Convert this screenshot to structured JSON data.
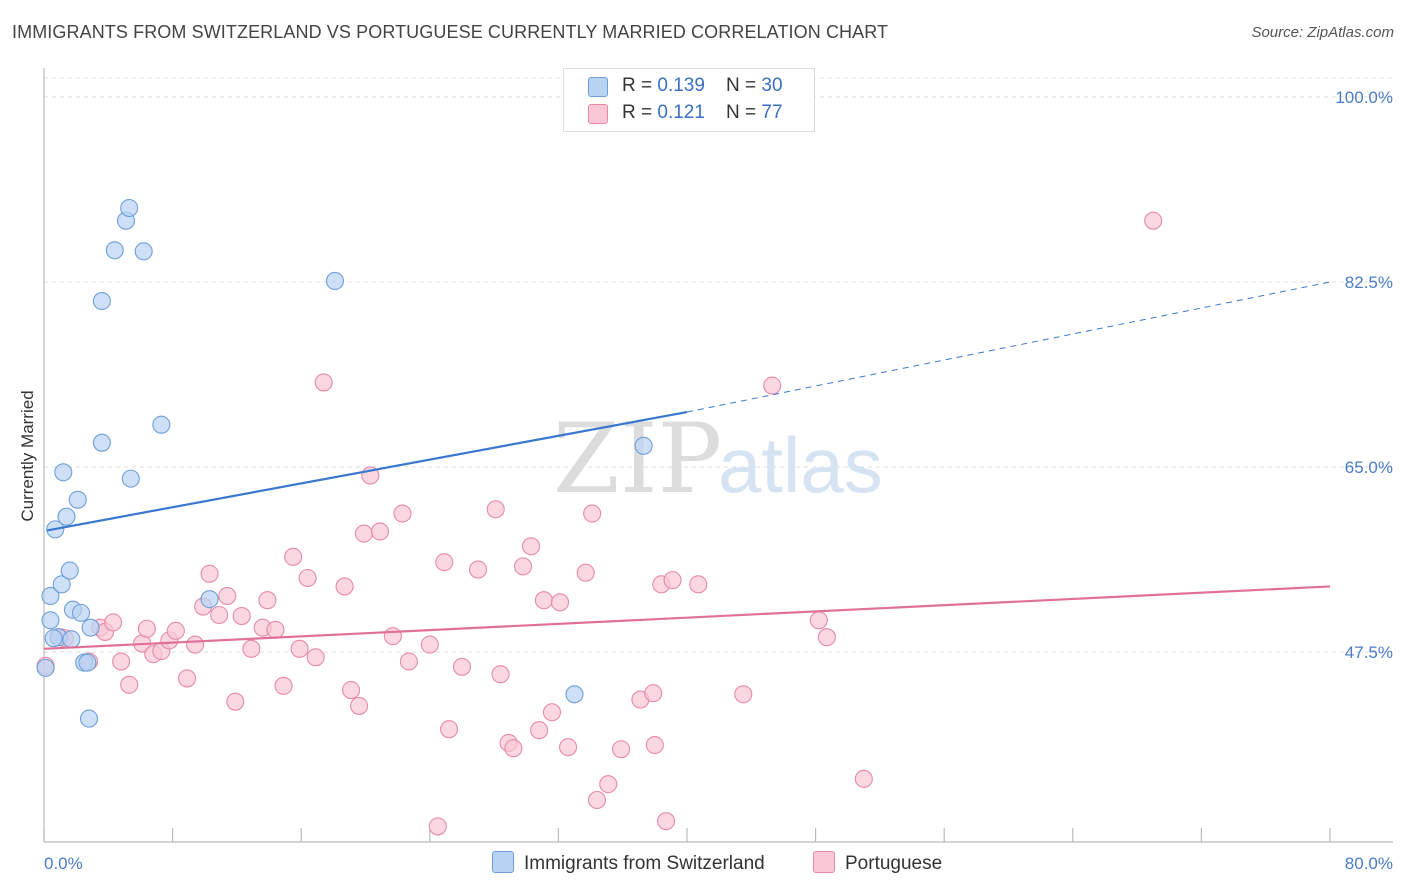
{
  "header": {
    "title": "IMMIGRANTS FROM SWITZERLAND VS PORTUGUESE CURRENTLY MARRIED CORRELATION CHART",
    "source": "Source: ZipAtlas.com"
  },
  "watermark": {
    "zip": "ZIP",
    "atlas": "atlas"
  },
  "legend": {
    "rows": [
      {
        "r_label": "R = ",
        "r_value": "0.139",
        "n_label": "N = ",
        "n_value": "30"
      },
      {
        "r_label": "R = ",
        "r_value": " 0.121",
        "n_label": "N = ",
        "n_value": "77"
      }
    ]
  },
  "colors": {
    "blue_fill": "#b8d3f3",
    "blue_stroke": "#6f9fd8",
    "blue_line": "#3a78d0",
    "pink_fill": "#f9c6d5",
    "pink_stroke": "#e68aa8",
    "pink_line": "#e0709a",
    "grid": "#dddddd",
    "axis_text": "#4a7cc7"
  },
  "chart_data": {
    "type": "scatter",
    "xlabel": "",
    "ylabel": "Currently Married",
    "xlim": [
      0,
      80
    ],
    "ylim": [
      31,
      104
    ],
    "x_tick_labels": [
      "0.0%",
      "80.0%"
    ],
    "y_ticks": [
      {
        "value": 100.0,
        "label": "100.0%"
      },
      {
        "value": 82.5,
        "label": "82.5%"
      },
      {
        "value": 65.0,
        "label": "65.0%"
      },
      {
        "value": 47.5,
        "label": "47.5%"
      }
    ],
    "grid": true,
    "legend_position": "bottom",
    "series": [
      {
        "name": "Immigrants from Switzerland",
        "color": "blue",
        "trend": {
          "x0": 0.2,
          "y0": 59.0,
          "x1": 40.0,
          "y1": 70.2,
          "dash_to_x": 80.0,
          "dash_to_y": 82.5
        },
        "points": [
          [
            0.1,
            46.0
          ],
          [
            0.4,
            52.8
          ],
          [
            0.4,
            50.5
          ],
          [
            0.7,
            59.1
          ],
          [
            0.9,
            48.9
          ],
          [
            1.1,
            53.9
          ],
          [
            1.2,
            64.5
          ],
          [
            1.4,
            60.3
          ],
          [
            1.6,
            55.2
          ],
          [
            1.7,
            48.7
          ],
          [
            1.8,
            51.5
          ],
          [
            2.1,
            61.9
          ],
          [
            2.3,
            51.2
          ],
          [
            2.5,
            46.5
          ],
          [
            2.7,
            46.5
          ],
          [
            2.8,
            41.2
          ],
          [
            2.9,
            49.8
          ],
          [
            3.6,
            67.3
          ],
          [
            3.6,
            80.7
          ],
          [
            4.4,
            85.5
          ],
          [
            5.1,
            88.3
          ],
          [
            5.3,
            89.5
          ],
          [
            5.4,
            63.9
          ],
          [
            6.2,
            85.4
          ],
          [
            7.3,
            69.0
          ],
          [
            10.3,
            52.5
          ],
          [
            18.1,
            82.6
          ],
          [
            37.3,
            67.0
          ],
          [
            33.0,
            43.5
          ],
          [
            0.6,
            48.8
          ]
        ]
      },
      {
        "name": "Portuguese",
        "color": "pink",
        "trend": {
          "x0": 0.0,
          "y0": 47.8,
          "x1": 80.0,
          "y1": 53.7
        },
        "points": [
          [
            0.1,
            46.2
          ],
          [
            1.0,
            48.9
          ],
          [
            1.3,
            48.8
          ],
          [
            2.8,
            46.6
          ],
          [
            3.5,
            49.8
          ],
          [
            3.8,
            49.4
          ],
          [
            4.3,
            50.3
          ],
          [
            4.8,
            46.6
          ],
          [
            5.3,
            44.4
          ],
          [
            6.1,
            48.3
          ],
          [
            6.4,
            49.7
          ],
          [
            6.8,
            47.3
          ],
          [
            7.3,
            47.6
          ],
          [
            7.8,
            48.6
          ],
          [
            8.2,
            49.5
          ],
          [
            8.9,
            45.0
          ],
          [
            9.4,
            48.2
          ],
          [
            9.9,
            51.8
          ],
          [
            10.3,
            54.9
          ],
          [
            10.9,
            51.0
          ],
          [
            11.4,
            52.8
          ],
          [
            11.9,
            42.8
          ],
          [
            12.3,
            50.9
          ],
          [
            12.9,
            47.8
          ],
          [
            13.6,
            49.8
          ],
          [
            13.9,
            52.4
          ],
          [
            14.4,
            49.6
          ],
          [
            14.9,
            44.3
          ],
          [
            15.5,
            56.5
          ],
          [
            15.9,
            47.8
          ],
          [
            16.4,
            54.5
          ],
          [
            16.9,
            47.0
          ],
          [
            17.4,
            73.0
          ],
          [
            18.7,
            53.7
          ],
          [
            19.1,
            43.9
          ],
          [
            19.6,
            42.4
          ],
          [
            19.9,
            58.7
          ],
          [
            20.3,
            64.2
          ],
          [
            20.9,
            58.9
          ],
          [
            21.7,
            49.0
          ],
          [
            22.3,
            60.6
          ],
          [
            22.7,
            46.6
          ],
          [
            24.0,
            48.2
          ],
          [
            24.9,
            56.0
          ],
          [
            25.2,
            40.2
          ],
          [
            26.0,
            46.1
          ],
          [
            27.0,
            55.3
          ],
          [
            28.1,
            61.0
          ],
          [
            28.4,
            45.4
          ],
          [
            28.9,
            38.9
          ],
          [
            29.2,
            38.4
          ],
          [
            29.8,
            55.6
          ],
          [
            30.8,
            40.1
          ],
          [
            31.1,
            52.4
          ],
          [
            31.6,
            41.8
          ],
          [
            32.1,
            52.2
          ],
          [
            32.6,
            38.5
          ],
          [
            33.7,
            55.0
          ],
          [
            34.1,
            60.6
          ],
          [
            34.4,
            33.5
          ],
          [
            35.1,
            35.0
          ],
          [
            35.9,
            38.3
          ],
          [
            37.1,
            43.0
          ],
          [
            37.9,
            43.6
          ],
          [
            38.0,
            38.7
          ],
          [
            38.4,
            53.9
          ],
          [
            39.1,
            54.3
          ],
          [
            40.7,
            53.9
          ],
          [
            43.5,
            43.5
          ],
          [
            45.3,
            72.7
          ],
          [
            48.2,
            50.5
          ],
          [
            48.7,
            48.9
          ],
          [
            51.0,
            35.5
          ],
          [
            30.3,
            57.5
          ],
          [
            24.5,
            31.0
          ],
          [
            38.7,
            31.5
          ],
          [
            69.0,
            88.3
          ]
        ]
      }
    ]
  }
}
